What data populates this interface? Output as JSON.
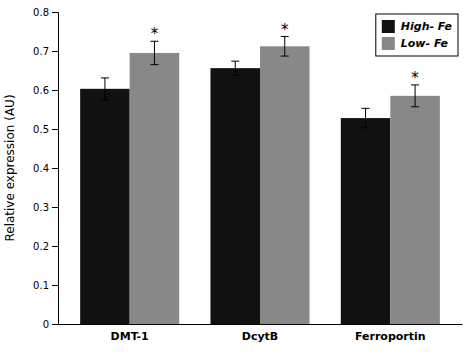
{
  "chart_data": {
    "type": "bar",
    "ylabel": "Relative expression (AU)",
    "categories": [
      "DMT-1",
      "DcytB",
      "Ferroportin"
    ],
    "series": [
      {
        "name": "High- Fe",
        "color": "#111111",
        "values": [
          0.603,
          0.656,
          0.528
        ],
        "errors": [
          0.028,
          0.018,
          0.025
        ]
      },
      {
        "name": "Low- Fe",
        "color": "#888888",
        "values": [
          0.695,
          0.712,
          0.585
        ],
        "errors": [
          0.03,
          0.025,
          0.028
        ],
        "annotations": [
          "*",
          "*",
          "*"
        ]
      }
    ],
    "ylim": [
      0,
      0.8
    ],
    "yticks": [
      0,
      0.1,
      0.2,
      0.3,
      0.4,
      0.5,
      0.6,
      0.7,
      0.8
    ],
    "grid": false,
    "legend": "upper right"
  }
}
